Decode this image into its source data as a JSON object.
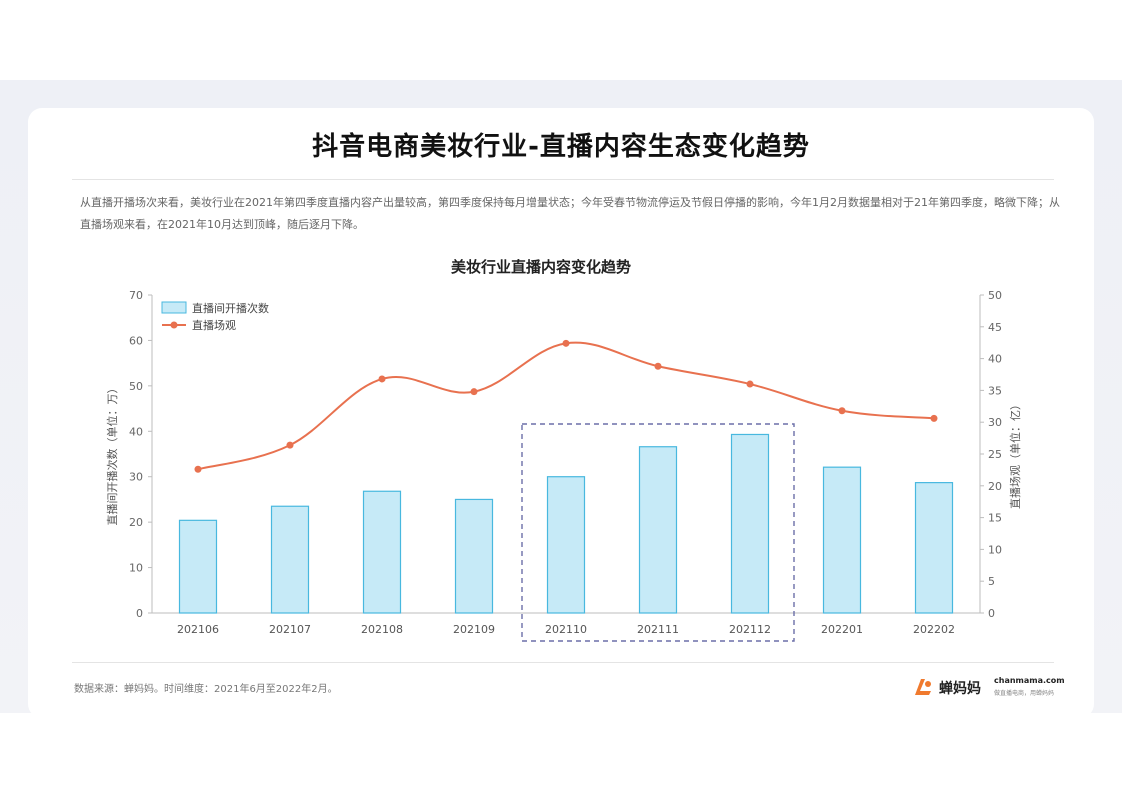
{
  "page": {
    "title": "抖音电商美妆行业-直播内容生态变化趋势",
    "description": "从直播开播场次来看，美妆行业在2021年第四季度直播内容产出量较高，第四季度保持每月增量状态；今年受春节物流停运及节假日停播的影响，今年1月2月数据量相对于21年第四季度，略微下降；从直播场观来看，在2021年10月达到顶峰，随后逐月下降。",
    "source": "数据来源：蝉妈妈。时间维度：2021年6月至2022年2月。",
    "brand_name": "蝉妈妈",
    "brand_site": "chanmama.com",
    "brand_slogan": "做直播电商，用蝉妈妈"
  },
  "chart_data": {
    "type": "bar",
    "title": "美妆行业直播内容变化趋势",
    "categories": [
      "202106",
      "202107",
      "202108",
      "202109",
      "202110",
      "202111",
      "202112",
      "202201",
      "202202"
    ],
    "series": [
      {
        "name": "直播间开播次数",
        "type": "bar",
        "axis": "left",
        "values": [
          20.4,
          23.5,
          26.8,
          25.0,
          30.0,
          36.6,
          39.3,
          32.1,
          28.7
        ],
        "color": "#c6eaf7",
        "stroke": "#48b8df"
      },
      {
        "name": "直播场观",
        "type": "line",
        "axis": "right",
        "values": [
          22.6,
          26.4,
          36.8,
          34.8,
          42.4,
          38.8,
          36.0,
          31.8,
          30.6
        ],
        "color": "#e8714f"
      }
    ],
    "y_left": {
      "label": "直播间开播次数（单位：万）",
      "min": 0,
      "max": 70,
      "ticks": [
        0,
        10,
        20,
        30,
        40,
        50,
        60,
        70
      ]
    },
    "y_right": {
      "label": "直播场观（单位：亿）",
      "min": 0,
      "max": 50,
      "ticks": [
        0,
        5,
        10,
        15,
        20,
        25,
        30,
        35,
        40,
        45,
        50
      ]
    },
    "highlight": [
      "202110",
      "202112"
    ],
    "legend_position": "top-left",
    "grid": false
  }
}
